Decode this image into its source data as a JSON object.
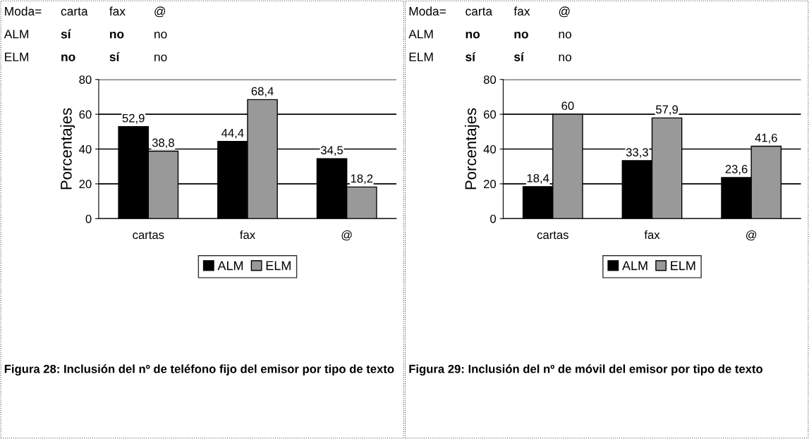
{
  "chart_data": [
    {
      "type": "bar",
      "ylabel": "Porcentajes",
      "categories": [
        "cartas",
        "fax",
        "@"
      ],
      "series": [
        {
          "name": "ALM",
          "color": "#000000",
          "values": [
            52.9,
            44.4,
            34.5
          ],
          "value_labels": [
            "52,9",
            "44,4",
            "34,5"
          ]
        },
        {
          "name": "ELM",
          "color": "#999999",
          "values": [
            38.8,
            68.4,
            18.2
          ],
          "value_labels": [
            "38,8",
            "68,4",
            "18,2"
          ]
        }
      ],
      "ylim": [
        0,
        80
      ],
      "yticks": [
        0,
        20,
        40,
        60,
        80
      ],
      "grid": "y",
      "legend": "bottom",
      "annotations": [
        "Moda=",
        "carta",
        "fax",
        "@",
        "ALM",
        "sí",
        "no",
        "no",
        "ELM",
        "no",
        "sí",
        "no",
        "Figura 28: Inclusión del nº de teléfono fijo del emisor por tipo de texto"
      ]
    },
    {
      "type": "bar",
      "ylabel": "Porcentajes",
      "categories": [
        "cartas",
        "fax",
        "@"
      ],
      "series": [
        {
          "name": "ALM",
          "color": "#000000",
          "values": [
            18.4,
            33.3,
            23.6
          ],
          "value_labels": [
            "18,4",
            "33,3",
            "23,6"
          ]
        },
        {
          "name": "ELM",
          "color": "#999999",
          "values": [
            60,
            57.9,
            41.6
          ],
          "value_labels": [
            "60",
            "57,9",
            "41,6"
          ]
        }
      ],
      "ylim": [
        0,
        80
      ],
      "yticks": [
        0,
        20,
        40,
        60,
        80
      ],
      "grid": "y",
      "legend": "bottom",
      "annotations": [
        "Moda=",
        "carta",
        "fax",
        "@",
        "ALM",
        "no",
        "no",
        "no",
        "ELM",
        "sí",
        "sí",
        "no",
        "Figura 29: Inclusión del nº de móvil del emisor por tipo de texto"
      ]
    }
  ]
}
